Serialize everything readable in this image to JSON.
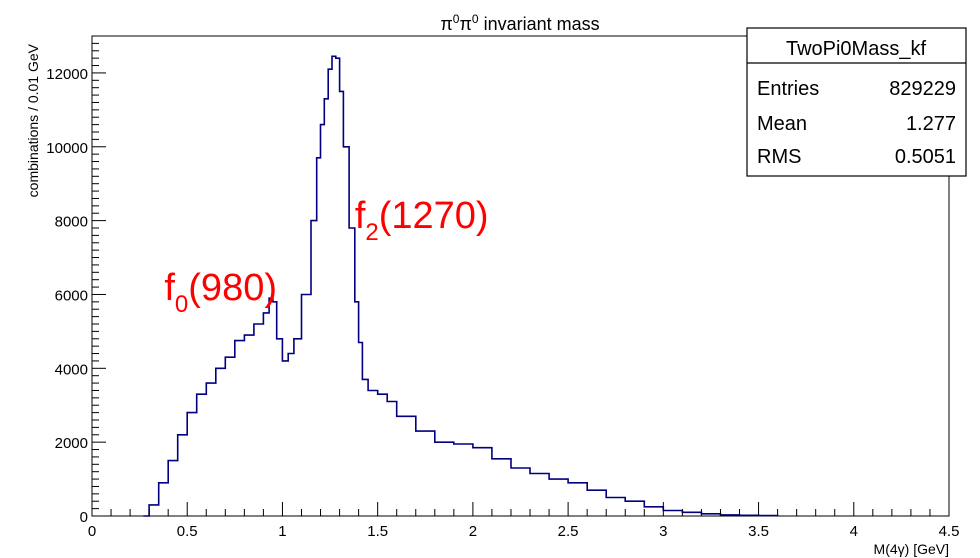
{
  "chart_data": {
    "type": "histogram",
    "title": {
      "base": "π",
      "sup1": "0",
      "mid": "π",
      "sup2": "0",
      "rest": " invariant mass"
    },
    "xlabel": "M(4γ) [GeV]",
    "ylabel": "combinations / 0.01 GeV",
    "xlim": [
      0,
      4.5
    ],
    "ylim": [
      0,
      13000
    ],
    "x_ticks": [
      "0",
      "0.5",
      "1",
      "1.5",
      "2",
      "2.5",
      "3",
      "3.5",
      "4",
      "4.5"
    ],
    "y_ticks": [
      "0",
      "2000",
      "4000",
      "6000",
      "8000",
      "10000",
      "12000"
    ],
    "grid": false,
    "line_color": "#000080",
    "annotation_color": "#ff0000",
    "annotations": [
      {
        "main": "f",
        "sub": "0",
        "rest": "(980)",
        "x": 0.38,
        "y": 5850
      },
      {
        "main": "f",
        "sub": "2",
        "rest": "(1270)",
        "x": 1.38,
        "y": 7800
      }
    ],
    "stats_box": {
      "name": "TwoPi0Mass_kf",
      "rows": [
        {
          "label": "Entries",
          "value": "829229"
        },
        {
          "label": "Mean",
          "value": "1.277"
        },
        {
          "label": "RMS",
          "value": "0.5051"
        }
      ]
    },
    "series": [
      {
        "x": [
          0.27,
          0.3,
          0.35,
          0.4,
          0.45,
          0.5,
          0.55,
          0.6,
          0.65,
          0.7,
          0.75,
          0.8,
          0.85,
          0.9,
          0.93,
          0.95,
          0.97,
          1.0,
          1.03,
          1.06,
          1.1,
          1.15,
          1.18,
          1.2,
          1.22,
          1.24,
          1.26,
          1.28,
          1.3,
          1.32,
          1.35,
          1.38,
          1.4,
          1.42,
          1.45,
          1.5,
          1.55,
          1.6,
          1.7,
          1.8,
          1.9,
          2.0,
          2.1,
          2.2,
          2.3,
          2.4,
          2.5,
          2.6,
          2.7,
          2.8,
          2.9,
          3.0,
          3.1,
          3.2,
          3.3,
          3.4,
          3.5,
          3.6
        ],
        "values": [
          0,
          300,
          900,
          1500,
          2200,
          2800,
          3300,
          3600,
          4000,
          4300,
          4750,
          4900,
          5200,
          5500,
          5900,
          5800,
          4800,
          4200,
          4400,
          4800,
          6000,
          8000,
          9700,
          10600,
          11300,
          12100,
          12450,
          12400,
          11500,
          10000,
          7800,
          5800,
          4700,
          3700,
          3400,
          3300,
          3100,
          2700,
          2300,
          2000,
          1950,
          1850,
          1550,
          1300,
          1150,
          1000,
          900,
          700,
          500,
          400,
          250,
          150,
          100,
          60,
          30,
          20,
          10,
          0
        ]
      }
    ]
  }
}
